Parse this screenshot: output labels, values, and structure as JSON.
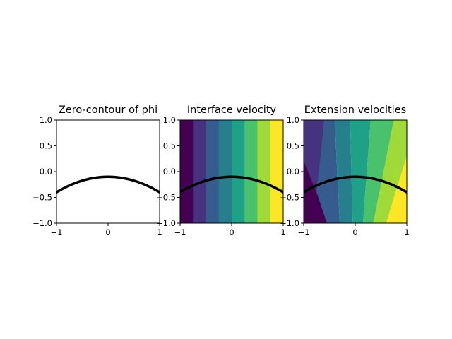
{
  "chart_data": [
    {
      "type": "contour",
      "title": "Zero-contour of phi",
      "xlim": [
        -1,
        1
      ],
      "ylim": [
        -1,
        1
      ],
      "xticks": [
        -1,
        0,
        1
      ],
      "yticks": [
        1.0,
        0.5,
        0.0,
        -0.5,
        -1.0
      ],
      "xtick_labels": [
        "−1",
        "0",
        "1"
      ],
      "ytick_labels": [
        "1.0",
        "0.5",
        "0.0",
        "−0.5",
        "−1.0"
      ],
      "filled": false,
      "zero_contour": {
        "equation": "y = -0.1 - 0.3*x^2",
        "color": "#000000"
      }
    },
    {
      "type": "heatmap",
      "title": "Interface velocity",
      "xlim": [
        -1,
        1
      ],
      "ylim": [
        -1,
        1
      ],
      "xticks": [
        -1,
        0,
        1
      ],
      "yticks": [
        1.0,
        0.5,
        0.0,
        -0.5,
        -1.0
      ],
      "xtick_labels": [
        "−1",
        "0",
        "1"
      ],
      "ytick_labels": [
        "1.0",
        "0.5",
        "0.0",
        "−0.5",
        "−1.0"
      ],
      "filled": true,
      "field": "vertical bands varying with x",
      "band_edges_x": [
        -1,
        -0.75,
        -0.5,
        -0.25,
        0,
        0.25,
        0.5,
        0.75,
        1
      ],
      "colors": [
        "#440154",
        "#46327e",
        "#365c8d",
        "#277f8e",
        "#1fa187",
        "#4ac16d",
        "#a0da39",
        "#fde725"
      ],
      "zero_contour": {
        "equation": "y = -0.1 - 0.3*x^2",
        "color": "#000000"
      }
    },
    {
      "type": "heatmap",
      "title": "Extension velocities",
      "xlim": [
        -1,
        1
      ],
      "ylim": [
        -1,
        1
      ],
      "xticks": [
        -1,
        0,
        1
      ],
      "yticks": [
        1.0,
        0.5,
        0.0,
        -0.5,
        -1.0
      ],
      "xtick_labels": [
        "−1",
        "0",
        "1"
      ],
      "ytick_labels": [
        "1.0",
        "0.5",
        "0.0",
        "−0.5",
        "−1.0"
      ],
      "filled": true,
      "field": "wedge-shaped bands fanning out from the zero contour",
      "colors": [
        "#440154",
        "#46327e",
        "#365c8d",
        "#277f8e",
        "#1fa187",
        "#4ac16d",
        "#a0da39",
        "#fde725"
      ],
      "zero_contour": {
        "equation": "y = -0.1 - 0.3*x^2",
        "color": "#000000"
      }
    }
  ]
}
